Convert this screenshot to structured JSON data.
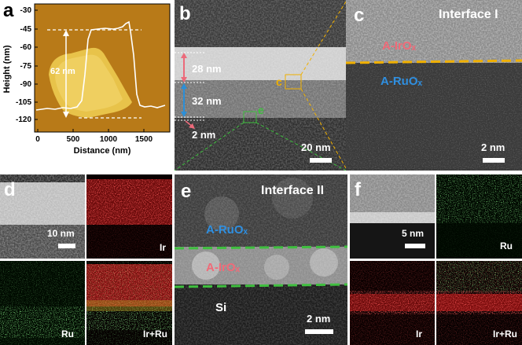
{
  "panels": {
    "a": {
      "label": "a",
      "ylabel": "Height (nm)",
      "xlabel": "Distance (nm)",
      "yticks": [
        "-30",
        "-45",
        "-60",
        "-75",
        "-90",
        "-105",
        "-120"
      ],
      "xticks": [
        "0",
        "500",
        "1000",
        "1500"
      ],
      "annotation": "62 nm"
    },
    "b": {
      "label": "b",
      "thickness_top": "28 nm",
      "thickness_mid": "32 nm",
      "thickness_bottom": "2 nm",
      "box_c_label": "c",
      "box_e_label": "e",
      "scalebar": "20 nm"
    },
    "c": {
      "label": "c",
      "title": "Interface I",
      "layer_top": "A-IrOₓ",
      "layer_bottom": "A-RuOₓ",
      "scalebar": "2 nm"
    },
    "d": {
      "label": "d",
      "scalebar": "10 nm",
      "maps": [
        "Ir",
        "Ru",
        "Ir+Ru"
      ]
    },
    "e": {
      "label": "e",
      "title": "Interface II",
      "layer_top": "A-RuOₓ",
      "layer_mid": "A-IrOₓ",
      "layer_bottom": "Si",
      "scalebar": "2 nm"
    },
    "f": {
      "label": "f",
      "scalebar": "5 nm",
      "maps": [
        "Ru",
        "Ir",
        "Ir+Ru"
      ]
    }
  },
  "colors": {
    "ir": "#e0262a",
    "ru": "#37b34a",
    "ir_label": "#f06a78",
    "ru_label": "#2f8fe0",
    "dashed_interface": "#f0b000",
    "dashed_green": "#3fbf3f",
    "arrow_pink": "#ec6a7a",
    "arrow_blue": "#2b8fd8"
  }
}
